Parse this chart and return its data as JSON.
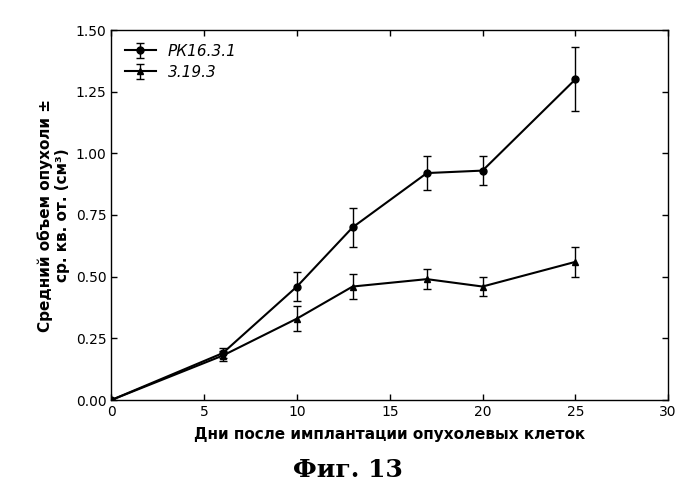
{
  "series1_label": "РК16.3.1",
  "series2_label": "3.19.3",
  "series1_x": [
    0,
    6,
    10,
    13,
    17,
    20,
    25
  ],
  "series1_y": [
    0.0,
    0.19,
    0.46,
    0.7,
    0.92,
    0.93,
    1.3
  ],
  "series1_yerr": [
    0.0,
    0.02,
    0.06,
    0.08,
    0.07,
    0.06,
    0.13
  ],
  "series2_x": [
    0,
    6,
    10,
    13,
    17,
    20,
    25
  ],
  "series2_y": [
    0.0,
    0.18,
    0.33,
    0.46,
    0.49,
    0.46,
    0.56
  ],
  "series2_yerr": [
    0.0,
    0.02,
    0.05,
    0.05,
    0.04,
    0.04,
    0.06
  ],
  "xlabel": "Дни после имплантации опухолевых клеток",
  "ylabel": "Средний объем опухоли ±\nср. кв. от. (см³)",
  "caption": "Фиг. 13",
  "xlim": [
    0,
    30
  ],
  "ylim": [
    0.0,
    1.5
  ],
  "yticks": [
    0.0,
    0.25,
    0.5,
    0.75,
    1.0,
    1.25,
    1.5
  ],
  "xticks": [
    0,
    5,
    10,
    15,
    20,
    25,
    30
  ],
  "color": "#000000",
  "background": "#ffffff",
  "axis_label_fontsize": 11,
  "tick_fontsize": 10,
  "legend_fontsize": 11,
  "caption_fontsize": 18
}
